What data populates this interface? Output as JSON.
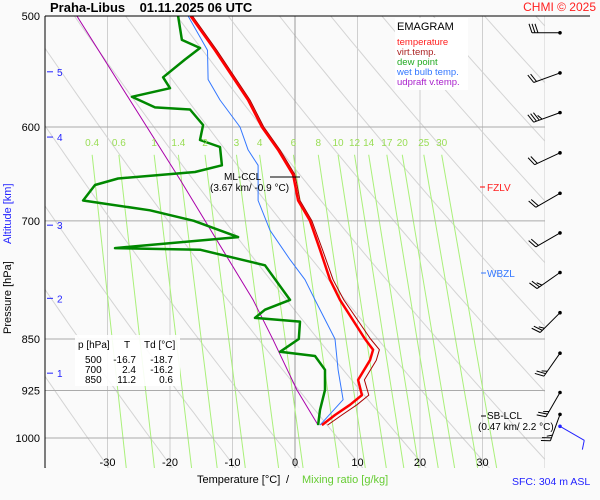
{
  "header": {
    "title": "Praha-Libus    01.11.2025 06 UTC",
    "copyright": "CHMI © 2025"
  },
  "legend": {
    "title": "EMAGRAM",
    "items": [
      {
        "label": "temperature",
        "color": "#ff0000"
      },
      {
        "label": "virt.temp.",
        "color": "#aa0000"
      },
      {
        "label": "dew point",
        "color": "#008800"
      },
      {
        "label": "wet bulb temp.",
        "color": "#3377ff"
      },
      {
        "label": "udpraft v.temp.",
        "color": "#aa00aa"
      }
    ]
  },
  "table": {
    "headers": [
      "p [hPa]",
      "T",
      "Td [°C]"
    ],
    "rows": [
      [
        "500",
        "-16.7",
        "-18.7"
      ],
      [
        "700",
        "2.4",
        "-16.2"
      ],
      [
        "850",
        "11.2",
        "0.6"
      ]
    ]
  },
  "annotations": {
    "ml_ccl": {
      "label": "ML-CCL",
      "detail": "(3.67 km/ -0.9 °C)",
      "pressure": 653,
      "temp": -0.9
    },
    "sb_lcl": {
      "label": "SB-LCL",
      "detail": "(0.47 km/ 2.2 °C)",
      "pressure": 962
    },
    "fzlv": {
      "label": "FZLV",
      "pressure": 669,
      "color": "#ff0000"
    },
    "wbzl": {
      "label": "WBZL",
      "pressure": 762,
      "color": "#3377ff"
    },
    "sfc": "SFC: 304 m ASL"
  },
  "chart_data": {
    "type": "line",
    "title": "Praha-Libus    01.11.2025 06 UTC",
    "xlabel": "Temperature [°C]",
    "xlabel_sep": "/",
    "xlabel2": "Mixing ratio [g/kg]",
    "ylabel": "Pressure [hPa]",
    "ylabel2": "Altitude [km]",
    "xlim": [
      -40,
      39
    ],
    "ylim": [
      1050,
      500
    ],
    "yscale": "log",
    "grid": true,
    "legend_position": "top-right",
    "x_ticks": [
      -30,
      -20,
      -10,
      0,
      10,
      20,
      30
    ],
    "y_ticks": [
      500,
      600,
      700,
      850,
      925,
      1000
    ],
    "altitude_ticks": [
      {
        "km": "5",
        "pressure": 548
      },
      {
        "km": "4",
        "pressure": 610
      },
      {
        "km": "3",
        "pressure": 705
      },
      {
        "km": "2",
        "pressure": 795
      },
      {
        "km": "1",
        "pressure": 899
      }
    ],
    "mixing_ratio_labels": [
      "0.4",
      "0.6",
      "1",
      "1.4",
      "2",
      "3",
      "4",
      "6",
      "8",
      "10",
      "12",
      "14",
      "17",
      "20",
      "25",
      "30"
    ],
    "series": [
      {
        "name": "temperature",
        "color": "#ff0000",
        "p": [
          500,
          529,
          574,
          600,
          623,
          649,
          677,
          700,
          734,
          771,
          797,
          850,
          865,
          880,
          909,
          932,
          947,
          963,
          979
        ],
        "t": [
          -16.7,
          -12.8,
          -7.5,
          -5.3,
          -2.7,
          -0.3,
          0.5,
          2.4,
          4.0,
          5.6,
          7.2,
          11.2,
          12.5,
          12.0,
          10.1,
          10.7,
          8.8,
          6.4,
          4.3
        ]
      },
      {
        "name": "virt.temp.",
        "color": "#aa0000",
        "p": [
          500,
          529,
          574,
          600,
          623,
          649,
          677,
          700,
          734,
          771,
          797,
          850,
          865,
          880,
          909,
          932,
          947,
          963,
          979
        ],
        "t": [
          -16.4,
          -12.5,
          -7.2,
          -5.0,
          -2.4,
          0.0,
          0.8,
          2.7,
          4.4,
          6.1,
          7.8,
          12.1,
          13.5,
          13.0,
          11.1,
          11.8,
          9.9,
          7.5,
          5.2
        ]
      },
      {
        "name": "dew point",
        "color": "#008800",
        "p": [
          500,
          520,
          527,
          537,
          553,
          563,
          571,
          581,
          583,
          598,
          613,
          620,
          639,
          646,
          653,
          660,
          677,
          688,
          700,
          719,
          732,
          734,
          753,
          797,
          810,
          821,
          826,
          850,
          868,
          874,
          894,
          924,
          955,
          979
        ],
        "t": [
          -18.7,
          -18.1,
          -15.2,
          -17.6,
          -21.1,
          -20.0,
          -26.1,
          -22.4,
          -16.8,
          -14.7,
          -15.2,
          -12.0,
          -11.7,
          -16.0,
          -28.3,
          -32.0,
          -33.9,
          -23.2,
          -16.2,
          -9.1,
          -28.8,
          -15.2,
          -4.8,
          -0.8,
          -4.8,
          -6.4,
          0.8,
          0.6,
          -2.4,
          3.2,
          4.8,
          4.8,
          4.0,
          3.7
        ]
      },
      {
        "name": "wet bulb temp.",
        "color": "#3377ff",
        "p": [
          500,
          529,
          555,
          574,
          600,
          623,
          639,
          677,
          711,
          746,
          771,
          797,
          850,
          894,
          939,
          979
        ],
        "t": [
          -17.1,
          -14.0,
          -13.9,
          -12.0,
          -8.8,
          -7.5,
          -5.9,
          -5.9,
          -4.0,
          -0.8,
          1.6,
          3.2,
          6.4,
          6.9,
          7.7,
          4.0
        ]
      },
      {
        "name": "udpraft v.temp.",
        "color": "#aa00aa",
        "p": [
          500,
          600,
          654,
          797,
          851,
          924,
          979
        ],
        "t": [
          -34.9,
          -23.7,
          -18.4,
          -6.7,
          -3.5,
          0.3,
          3.7
        ]
      }
    ],
    "wind_barbs": [
      {
        "p": 514,
        "dir": 270,
        "kt": 30
      },
      {
        "p": 549,
        "dir": 250,
        "kt": 20
      },
      {
        "p": 586,
        "dir": 250,
        "kt": 25
      },
      {
        "p": 626,
        "dir": 245,
        "kt": 20
      },
      {
        "p": 669,
        "dir": 240,
        "kt": 20
      },
      {
        "p": 714,
        "dir": 240,
        "kt": 20
      },
      {
        "p": 762,
        "dir": 235,
        "kt": 15
      },
      {
        "p": 814,
        "dir": 225,
        "kt": 15
      },
      {
        "p": 870,
        "dir": 215,
        "kt": 15
      },
      {
        "p": 928,
        "dir": 210,
        "kt": 15
      },
      {
        "p": 962,
        "dir": 200,
        "kt": 15
      },
      {
        "p": 981,
        "dir": 120,
        "kt": 10,
        "surface": true
      }
    ]
  }
}
